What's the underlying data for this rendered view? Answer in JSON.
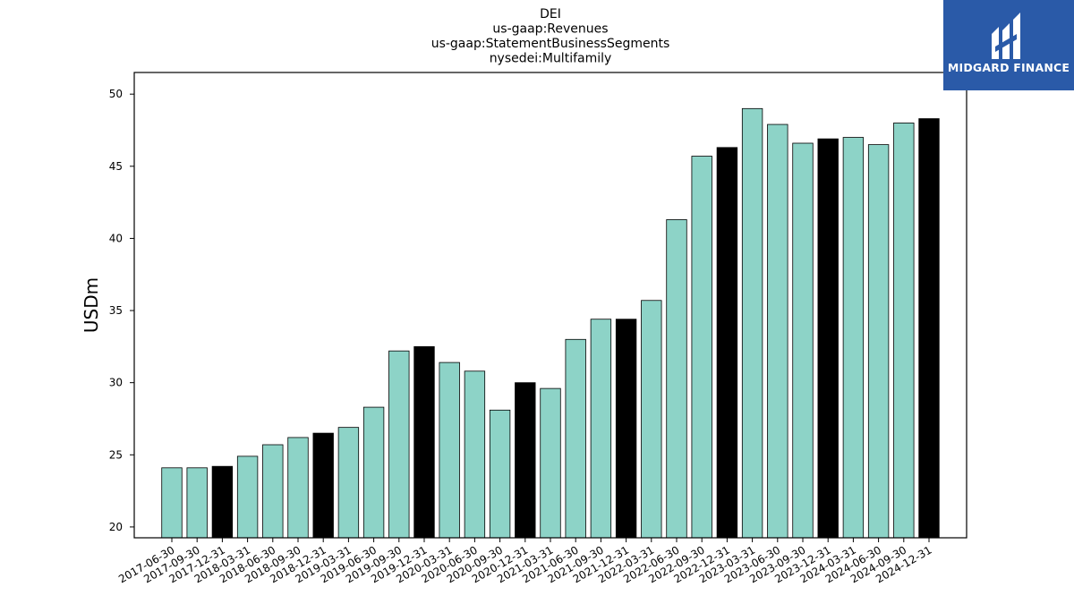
{
  "chart_data": {
    "type": "bar",
    "title_lines": [
      "DEI",
      "us-gaap:Revenues",
      "us-gaap:StatementBusinessSegments",
      "nysedei:Multifamily"
    ],
    "xlabel": "",
    "ylabel": "USDm",
    "ylim": [
      19.25,
      51.5
    ],
    "yticks": [
      20,
      25,
      30,
      35,
      40,
      45,
      50
    ],
    "categories": [
      "2017-06-30",
      "2017-09-30",
      "2017-12-31",
      "2018-03-31",
      "2018-06-30",
      "2018-09-30",
      "2018-12-31",
      "2019-03-31",
      "2019-06-30",
      "2019-09-30",
      "2019-12-31",
      "2020-03-31",
      "2020-06-30",
      "2020-09-30",
      "2020-12-31",
      "2021-03-31",
      "2021-06-30",
      "2021-09-30",
      "2021-12-31",
      "2022-03-31",
      "2022-06-30",
      "2022-09-30",
      "2022-12-31",
      "2023-03-31",
      "2023-06-30",
      "2023-09-30",
      "2023-12-31",
      "2024-03-31",
      "2024-06-30",
      "2024-09-30",
      "2024-12-31"
    ],
    "values": [
      24.1,
      24.1,
      24.2,
      24.9,
      25.7,
      26.2,
      26.5,
      26.9,
      28.3,
      32.2,
      32.5,
      31.4,
      30.8,
      28.1,
      30.0,
      29.6,
      33.0,
      34.4,
      34.4,
      35.7,
      41.3,
      45.7,
      46.3,
      49.0,
      47.9,
      46.6,
      46.9,
      47.0,
      46.5,
      48.0,
      48.3
    ],
    "colors": {
      "default": "#8dd3c7",
      "year_end": "#000000",
      "edge": "#000000"
    },
    "grid": false,
    "legend": "none"
  },
  "logo": {
    "text": "MIDGARD FINANCE",
    "icon": "midgard-logo-icon",
    "background": "#2a5aa8"
  }
}
